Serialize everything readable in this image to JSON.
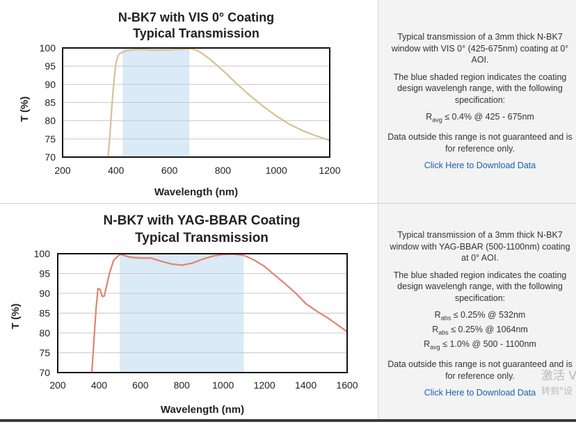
{
  "panels": [
    {
      "description": [
        "Typical transmission of a 3mm thick N-BK7 window with VIS 0° (425-675nm) coating at 0° AOI.",
        "The blue shaded region indicates the coating design wavelengh range, with the following specification:"
      ],
      "specs": [
        {
          "sym": "R",
          "sub": "avg",
          "rest": "≤ 0.4% @ 425 - 675nm"
        }
      ],
      "note": "Data outside this range is not guaranteed and is for reference only.",
      "link": "Click Here to Download Data"
    },
    {
      "description": [
        "Typical transmission of a 3mm thick N-BK7 window with YAG-BBAR (500-1100nm) coating at 0° AOI.",
        "The blue shaded region indicates the coating design wavelengh range, with the following specification:"
      ],
      "specs": [
        {
          "sym": "R",
          "sub": "abs",
          "rest": "≤ 0.25% @ 532nm"
        },
        {
          "sym": "R",
          "sub": "abs",
          "rest": "≤ 0.25% @ 1064nm"
        },
        {
          "sym": "R",
          "sub": "avg",
          "rest": "≤ 1.0% @ 500 - 1100nm"
        }
      ],
      "note": "Data outside this range is not guaranteed and is for reference only.",
      "link": "Click Here to Download Data"
    }
  ],
  "watermark": {
    "line1": "激活 V",
    "line2": "转到\"设"
  },
  "colors": {
    "band": "#daeaf6",
    "curve1": "#d9bf94",
    "curve2": "#e2826f",
    "link": "#1a5fb4"
  },
  "chart_data": [
    {
      "type": "line",
      "title": "N-BK7 with VIS 0° Coating",
      "subtitle": "Typical Transmission",
      "xlabel": "Wavelength (nm)",
      "ylabel": "T (%)",
      "xlim": [
        200,
        1200
      ],
      "ylim": [
        70,
        100
      ],
      "xticks": [
        200,
        400,
        600,
        800,
        1000,
        1200
      ],
      "yticks": [
        70,
        75,
        80,
        85,
        90,
        95,
        100
      ],
      "grid": true,
      "shaded_region": [
        425,
        675
      ],
      "series": [
        {
          "x": [
            370,
            375,
            380,
            385,
            390,
            395,
            400,
            405,
            410,
            415,
            420,
            430,
            440,
            460,
            480,
            500,
            550,
            600,
            650,
            680,
            700,
            720,
            750,
            800,
            850,
            900,
            950,
            1000,
            1050,
            1100,
            1150,
            1200
          ],
          "y": [
            70,
            74,
            79,
            84.5,
            89,
            93,
            95.8,
            97.3,
            98.1,
            98.5,
            98.7,
            99.0,
            99.3,
            99.5,
            99.6,
            99.6,
            99.4,
            99.5,
            99.7,
            99.8,
            99.4,
            98.6,
            97.0,
            93.8,
            90.3,
            87.0,
            84.0,
            81.3,
            79.0,
            77.2,
            75.8,
            74.6
          ]
        }
      ]
    },
    {
      "type": "line",
      "title": "N-BK7 with YAG-BBAR Coating",
      "subtitle": "Typical Transmission",
      "xlabel": "Wavelength (nm)",
      "ylabel": "T (%)",
      "xlim": [
        200,
        1600
      ],
      "ylim": [
        70,
        100
      ],
      "xticks": [
        200,
        400,
        600,
        800,
        1000,
        1200,
        1400,
        1600
      ],
      "yticks": [
        70,
        75,
        80,
        85,
        90,
        95,
        100
      ],
      "grid": true,
      "shaded_region": [
        500,
        1100
      ],
      "series": [
        {
          "x": [
            365,
            375,
            385,
            395,
            405,
            415,
            425,
            435,
            450,
            470,
            500,
            520,
            550,
            600,
            650,
            700,
            750,
            800,
            850,
            900,
            950,
            1000,
            1050,
            1100,
            1150,
            1200,
            1250,
            1300,
            1350,
            1400,
            1450,
            1500,
            1550,
            1600
          ],
          "y": [
            70,
            78,
            86,
            91.2,
            91.0,
            89.2,
            89.3,
            91.5,
            95.0,
            98.3,
            99.8,
            99.6,
            99.1,
            98.9,
            98.9,
            98.1,
            97.4,
            97.1,
            97.6,
            98.6,
            99.4,
            99.8,
            99.9,
            99.6,
            98.4,
            96.8,
            94.6,
            92.4,
            90.1,
            87.4,
            85.6,
            84.0,
            82.2,
            80.3
          ]
        }
      ]
    }
  ]
}
